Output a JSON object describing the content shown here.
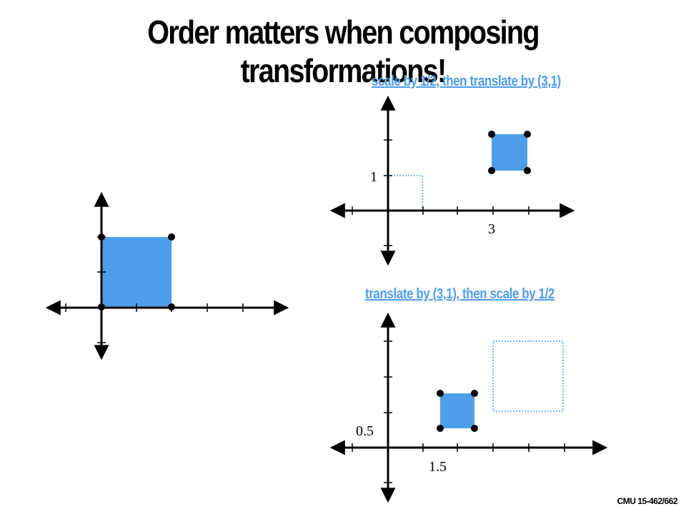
{
  "title": "Order matters when composing transformations!",
  "captions": {
    "scale_then_translate": "scale by 1/2, then translate by (3,1)",
    "translate_then_scale": "translate by (3,1), then scale by 1/2"
  },
  "axis_labels": {
    "top_y": "1",
    "top_x": "3",
    "bottom_y": "0.5",
    "bottom_x": "1.5"
  },
  "footer": "CMU 15-462/662",
  "colors": {
    "fill": "#4f9ee9",
    "caption": "#4f9ee9",
    "outline": "#4f9ee9",
    "axis": "#000000"
  }
}
